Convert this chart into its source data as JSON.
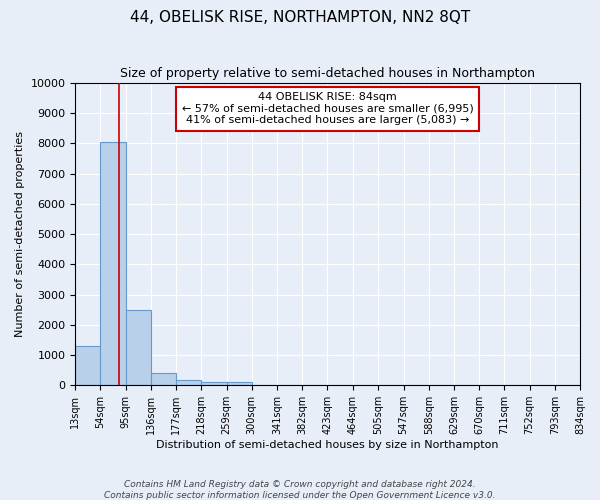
{
  "title": "44, OBELISK RISE, NORTHAMPTON, NN2 8QT",
  "subtitle": "Size of property relative to semi-detached houses in Northampton",
  "xlabel_dist": "Distribution of semi-detached houses by size in Northampton",
  "ylabel": "Number of semi-detached properties",
  "footnote1": "Contains HM Land Registry data © Crown copyright and database right 2024.",
  "footnote2": "Contains public sector information licensed under the Open Government Licence v3.0.",
  "bin_edges": [
    13,
    54,
    95,
    136,
    177,
    218,
    259,
    300,
    341,
    382,
    423,
    464,
    505,
    547,
    588,
    629,
    670,
    711,
    752,
    793,
    834
  ],
  "bar_heights": [
    1300,
    8050,
    2500,
    400,
    175,
    120,
    100,
    0,
    0,
    0,
    0,
    0,
    0,
    0,
    0,
    0,
    0,
    0,
    0,
    0
  ],
  "bar_color": "#b8d0ea",
  "bar_edge_color": "#6699cc",
  "bg_color": "#e8eef8",
  "plot_bg_color": "#e8eef8",
  "grid_color": "#ffffff",
  "property_line_x": 84,
  "property_line_color": "#cc0000",
  "ylim": [
    0,
    10000
  ],
  "yticks": [
    0,
    1000,
    2000,
    3000,
    4000,
    5000,
    6000,
    7000,
    8000,
    9000,
    10000
  ],
  "annotation_title": "44 OBELISK RISE: 84sqm",
  "annotation_line1": "← 57% of semi-detached houses are smaller (6,995)",
  "annotation_line2": "41% of semi-detached houses are larger (5,083) →",
  "annotation_box_color": "#ffffff",
  "annotation_border_color": "#cc0000",
  "title_fontsize": 11,
  "subtitle_fontsize": 9
}
